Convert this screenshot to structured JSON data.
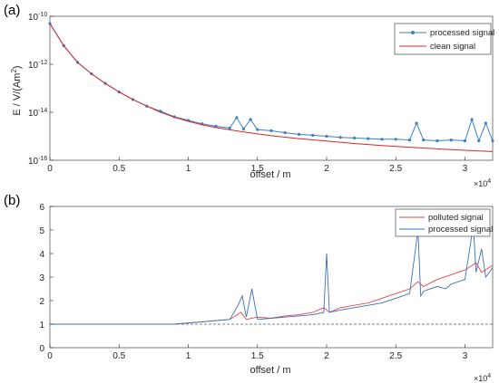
{
  "chart_data": [
    {
      "panel_label": "(a)",
      "type": "line",
      "xlabel": "offset / m",
      "ylabel": "E / V/(Am",
      "ylabel_sup": "2",
      "ylabel_tail": ")",
      "x_multiplier_base": "×10",
      "x_multiplier_exp": "4",
      "yscale": "log",
      "xlim": [
        0,
        32000
      ],
      "ylim": [
        1e-16,
        1e-10
      ],
      "xticks": [
        0,
        5000,
        10000,
        15000,
        20000,
        25000,
        30000
      ],
      "xticklabels": [
        "0",
        "0.5",
        "1",
        "1.5",
        "2",
        "2.5",
        "3"
      ],
      "yticks": [
        1e-16,
        1e-14,
        1e-12,
        1e-10
      ],
      "ytick_base": "10",
      "ytick_exps": [
        "-16",
        "-14",
        "-12",
        "-10"
      ],
      "grid": false,
      "legend_position": "top-right",
      "legend": [
        "processed signal",
        "clean signal"
      ],
      "colors": {
        "processed": "#3c7fc4",
        "clean": "#d62728"
      },
      "clean_signal": {
        "x": [
          0,
          1000,
          2000,
          3000,
          4000,
          5000,
          6000,
          7000,
          8000,
          9000,
          10000,
          11000,
          12000,
          14000,
          16000,
          18000,
          20000,
          22000,
          24000,
          26000,
          28000,
          30000,
          32000
        ],
        "y": [
          5e-11,
          6e-12,
          1.2e-12,
          4e-13,
          1.6e-13,
          7e-14,
          3.4e-14,
          1.8e-14,
          1e-14,
          6.2e-15,
          4.2e-15,
          3e-15,
          2.3e-15,
          1.5e-15,
          1.05e-15,
          8e-16,
          6.3e-16,
          5e-16,
          4.1e-16,
          3.5e-16,
          3e-16,
          2.6e-16,
          2.3e-16
        ]
      },
      "processed_signal": {
        "x": [
          0,
          1000,
          2000,
          3000,
          4000,
          5000,
          6000,
          7000,
          8000,
          9000,
          10000,
          11000,
          12000,
          13000,
          13500,
          14000,
          14500,
          15000,
          16000,
          17000,
          18000,
          19000,
          20000,
          21000,
          22000,
          23000,
          24000,
          25000,
          26000,
          26500,
          27000,
          28000,
          29000,
          30000,
          30500,
          31000,
          31500,
          32000
        ],
        "y": [
          5e-11,
          6e-12,
          1.2e-12,
          4e-13,
          1.6e-13,
          7e-14,
          3.4e-14,
          1.8e-14,
          1.1e-14,
          6.5e-15,
          4.6e-15,
          3.3e-15,
          2.6e-15,
          2.2e-15,
          6e-15,
          2e-15,
          5e-15,
          1.9e-15,
          1.7e-15,
          1.4e-15,
          1.2e-15,
          1.1e-15,
          1e-15,
          9e-16,
          8.5e-16,
          8e-16,
          7.5e-16,
          7.5e-16,
          7e-16,
          3.5e-15,
          7e-16,
          6.5e-16,
          7e-16,
          6.5e-16,
          5e-15,
          6.5e-16,
          3.5e-15,
          6.5e-16
        ]
      }
    },
    {
      "panel_label": "(b)",
      "type": "line",
      "xlabel": "offset / m",
      "ylabel": "",
      "x_multiplier_base": "×10",
      "x_multiplier_exp": "4",
      "xlim": [
        0,
        32000
      ],
      "ylim": [
        0,
        6
      ],
      "xticks": [
        0,
        5000,
        10000,
        15000,
        20000,
        25000,
        30000
      ],
      "xticklabels": [
        "0",
        "0.5",
        "1",
        "1.5",
        "2",
        "2.5",
        "3"
      ],
      "yticks": [
        0,
        1,
        2,
        3,
        4,
        5,
        6
      ],
      "yticklabels": [
        "0",
        "1",
        "2",
        "3",
        "4",
        "5",
        "6"
      ],
      "reference_line": 1,
      "grid": false,
      "legend_position": "top-right",
      "legend": [
        "polluted signal",
        "processed signal"
      ],
      "colors": {
        "polluted": "#e0473f",
        "processed": "#3c6fb4"
      },
      "polluted_signal": {
        "x": [
          0,
          9000,
          10000,
          11000,
          12000,
          13000,
          13800,
          14200,
          15000,
          16000,
          17000,
          18000,
          19000,
          19800,
          20200,
          21000,
          22000,
          23000,
          24000,
          25000,
          26000,
          26600,
          27000,
          28000,
          29000,
          30000,
          30800,
          31200,
          32000
        ],
        "y": [
          1,
          1,
          1.05,
          1.1,
          1.15,
          1.2,
          1.5,
          1.2,
          1.3,
          1.25,
          1.35,
          1.4,
          1.5,
          1.7,
          1.5,
          1.7,
          1.8,
          1.9,
          2.1,
          2.3,
          2.5,
          2.8,
          2.6,
          2.9,
          3.1,
          3.3,
          3.6,
          3.2,
          3.5
        ]
      },
      "processed_signal": {
        "x": [
          0,
          9000,
          10000,
          11000,
          12000,
          13000,
          13600,
          13900,
          14200,
          14600,
          15000,
          16000,
          17000,
          18000,
          19000,
          19800,
          20000,
          20200,
          21000,
          22000,
          23000,
          24000,
          25000,
          26000,
          26600,
          26800,
          27000,
          28000,
          28600,
          29000,
          30000,
          30600,
          30800,
          31200,
          31500,
          32000
        ],
        "y": [
          1,
          1,
          1.05,
          1.1,
          1.15,
          1.2,
          1.8,
          2.2,
          1.3,
          2.5,
          1.2,
          1.25,
          1.3,
          1.35,
          1.4,
          1.5,
          4.0,
          1.5,
          1.6,
          1.7,
          1.8,
          1.9,
          2.1,
          2.3,
          5.0,
          2.2,
          2.4,
          2.6,
          2.5,
          2.7,
          2.9,
          5.2,
          3.2,
          4.2,
          3.0,
          3.4
        ]
      }
    }
  ]
}
